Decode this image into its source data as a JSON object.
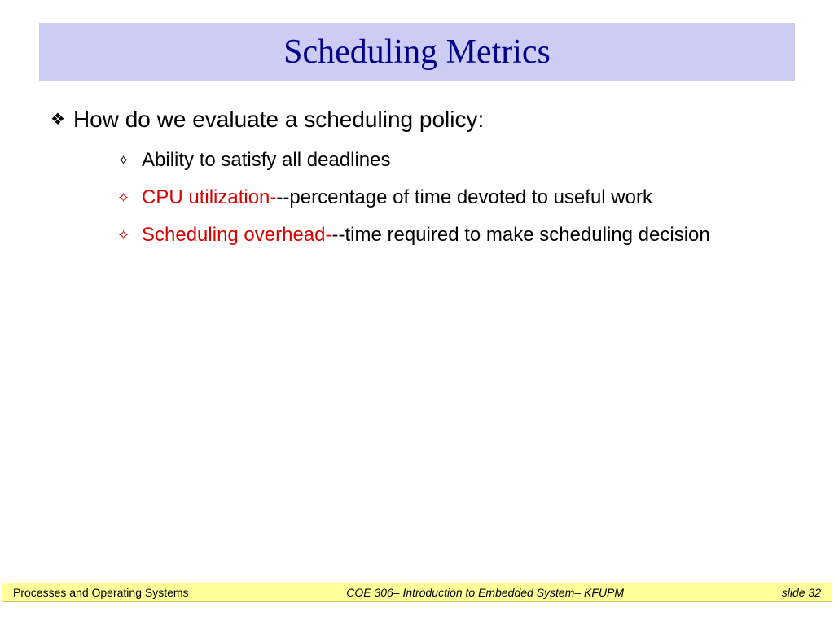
{
  "title": "Scheduling Metrics",
  "colors": {
    "title_bg": "#ccccf5",
    "title_fg": "#00008b",
    "footer_bg": "#ffff99",
    "accent_red": "#d90000",
    "text": "#000000",
    "page_bg": "#ffffff"
  },
  "fonts": {
    "title_family": "Comic Sans MS",
    "title_size_pt": 32,
    "body_family": "Arial",
    "l1_size_pt": 21,
    "l2_size_pt": 18,
    "footer_size_pt": 11
  },
  "bullets": {
    "l1_glyph": "❖",
    "l2_glyph": "✧"
  },
  "content": {
    "l1": "How do we evaluate a scheduling policy:",
    "items": [
      {
        "highlight": "",
        "rest": "Ability to satisfy all deadlines",
        "bullet_color": "black"
      },
      {
        "highlight": "CPU utilization-",
        "rest": "--percentage of time devoted to useful work",
        "bullet_color": "red"
      },
      {
        "highlight": "Scheduling overhead-",
        "rest": "--time required to make scheduling decision",
        "bullet_color": "red"
      }
    ]
  },
  "footer": {
    "left": "Processes and Operating Systems",
    "center": "COE 306– Introduction to Embedded System– KFUPM",
    "right": "slide 32"
  }
}
